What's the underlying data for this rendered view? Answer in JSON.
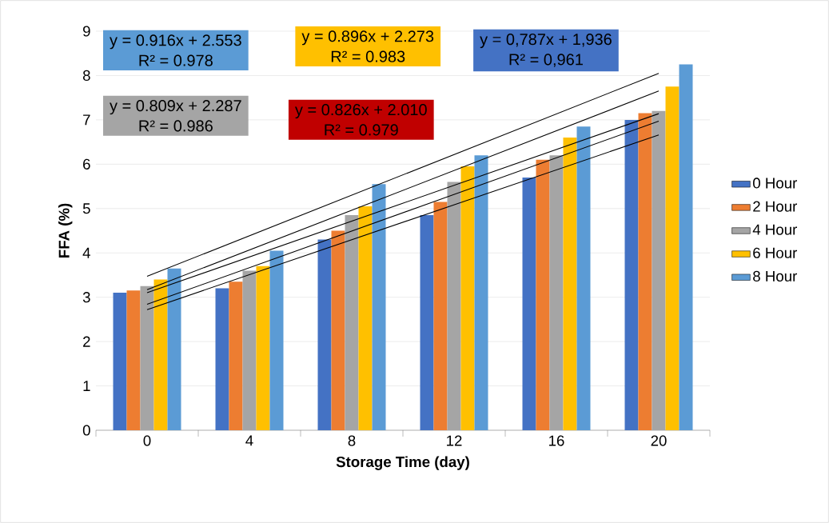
{
  "chart_data": {
    "type": "bar",
    "xlabel": "Storage Time (day)",
    "ylabel": "FFA (%)",
    "categories": [
      "0",
      "4",
      "8",
      "12",
      "16",
      "20"
    ],
    "series": [
      {
        "name": "0 Hour",
        "color": "#4472c4",
        "values": [
          3.1,
          3.2,
          4.3,
          4.85,
          5.7,
          7.0
        ]
      },
      {
        "name": "2 Hour",
        "color": "#ed7d31",
        "values": [
          3.15,
          3.35,
          4.5,
          5.15,
          6.1,
          7.15
        ]
      },
      {
        "name": "4 Hour",
        "color": "#a5a5a5",
        "values": [
          3.25,
          3.6,
          4.85,
          5.6,
          6.2,
          7.2
        ]
      },
      {
        "name": "6 Hour",
        "color": "#ffc000",
        "values": [
          3.4,
          3.7,
          5.05,
          5.95,
          6.6,
          7.75
        ]
      },
      {
        "name": "8 Hour",
        "color": "#5b9bd5",
        "values": [
          3.65,
          4.05,
          5.55,
          6.2,
          6.85,
          8.25
        ]
      },
      {
        "type": "line",
        "color": "#000000",
        "x": [
          "0",
          "20"
        ],
        "values": [
          3.47,
          8.05
        ]
      },
      {
        "type": "line",
        "color": "#000000",
        "x": [
          "0",
          "20"
        ],
        "values": [
          3.17,
          7.65
        ]
      },
      {
        "type": "line",
        "color": "#000000",
        "x": [
          "0",
          "20"
        ],
        "values": [
          3.1,
          7.14
        ]
      },
      {
        "type": "line",
        "color": "#000000",
        "x": [
          "0",
          "20"
        ],
        "values": [
          2.84,
          6.97
        ]
      },
      {
        "type": "line",
        "color": "#000000",
        "x": [
          "0",
          "20"
        ],
        "values": [
          2.72,
          6.66
        ]
      }
    ],
    "ylim": [
      0,
      9
    ],
    "yticks": [
      0,
      1,
      2,
      3,
      4,
      5,
      6,
      7,
      8,
      9
    ],
    "grid": "y",
    "legend": "right",
    "annotations": [
      "y = 0.916x + 2.553",
      "R² = 0.978",
      "y = 0.896x + 2.273",
      "R² = 0.983",
      "y = 0,787x + 1,936",
      "R² = 0,961",
      "y = 0.809x + 2.287",
      "R² = 0.986",
      "y = 0.826x + 2.010",
      "R² = 0.979"
    ]
  }
}
